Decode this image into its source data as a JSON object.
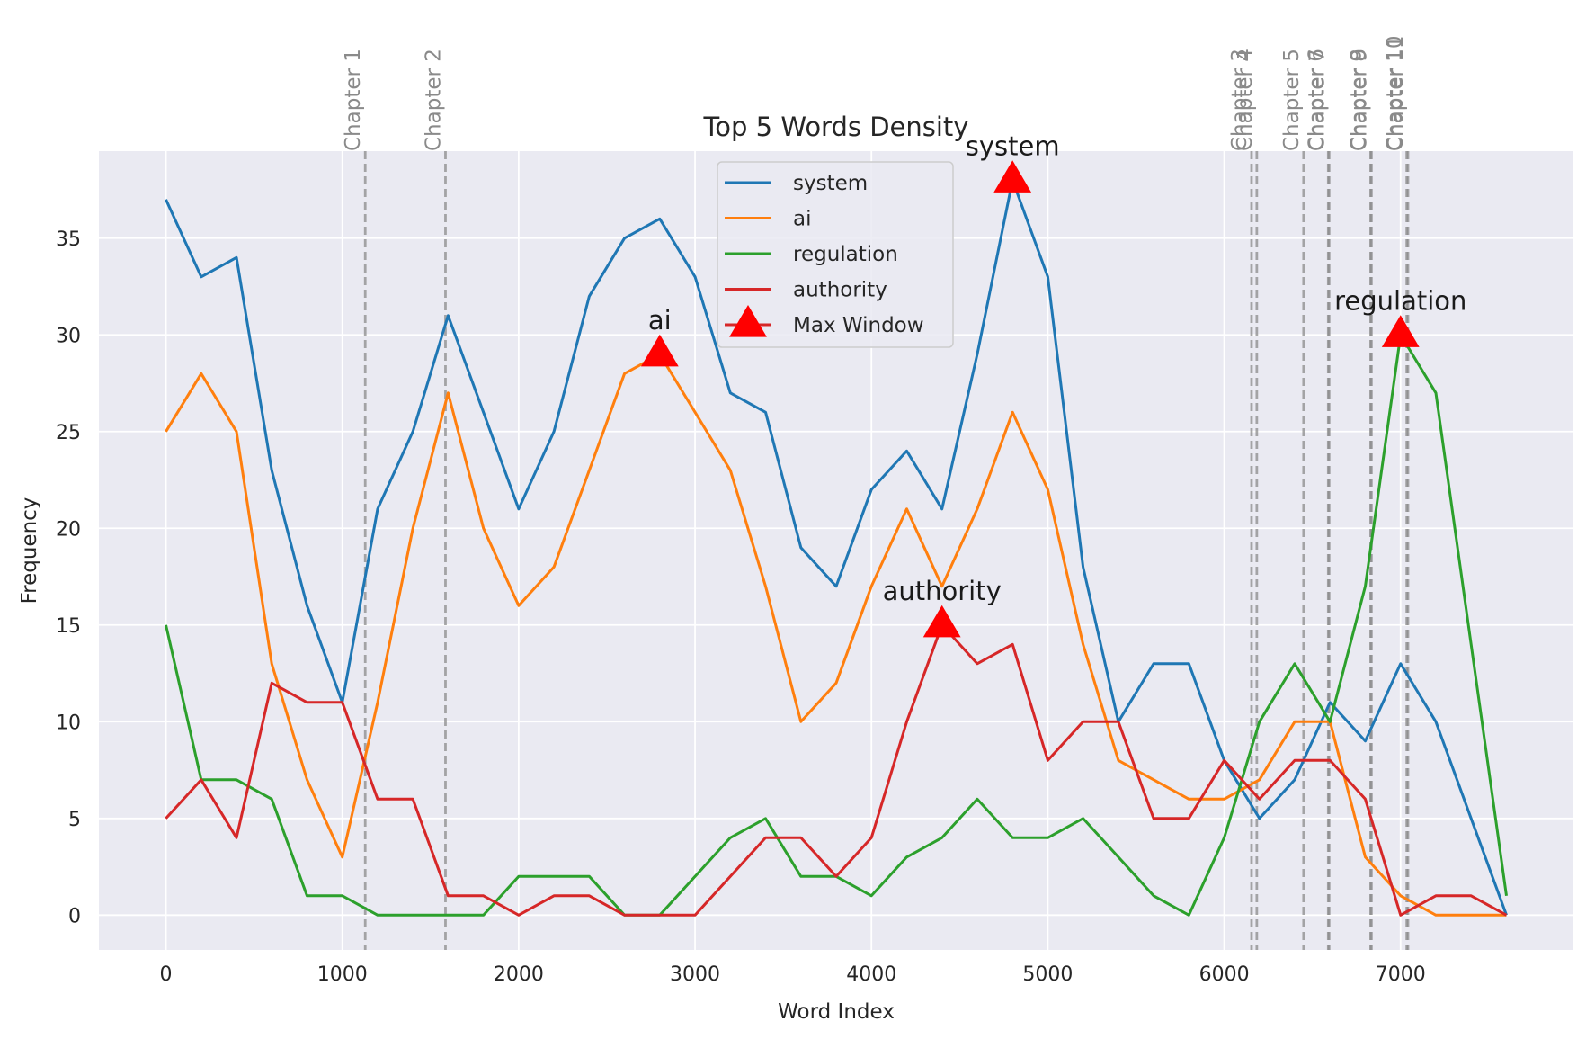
{
  "chart_data": {
    "type": "line",
    "title": "Top 5 Words Density",
    "xlabel": "Word Index",
    "ylabel": "Frequency",
    "xlim": [
      -380,
      7980
    ],
    "ylim": [
      -1.8,
      39.5
    ],
    "xticks": [
      0,
      1000,
      2000,
      3000,
      4000,
      5000,
      6000,
      7000
    ],
    "yticks": [
      0,
      5,
      10,
      15,
      20,
      25,
      30,
      35
    ],
    "grid": true,
    "legend_position": "upper-center",
    "x": [
      0,
      200,
      400,
      600,
      800,
      1000,
      1200,
      1400,
      1600,
      1800,
      2000,
      2200,
      2400,
      2600,
      2800,
      3000,
      3200,
      3400,
      3600,
      3800,
      4000,
      4200,
      4400,
      4600,
      4800,
      5000,
      5200,
      5400,
      5600,
      5800,
      6000,
      6200,
      6400,
      6600,
      6800,
      7000,
      7200,
      7400,
      7600
    ],
    "series": [
      {
        "name": "system",
        "color": "#1f77b4",
        "values": [
          37,
          33,
          34,
          23,
          16,
          11,
          21,
          25,
          31,
          26,
          21,
          25,
          32,
          35,
          36,
          33,
          27,
          26,
          19,
          17,
          22,
          24,
          21,
          29,
          38,
          33,
          18,
          10,
          13,
          13,
          8,
          5,
          7,
          11,
          9,
          13,
          10,
          5,
          0
        ]
      },
      {
        "name": "ai",
        "color": "#ff7f0e",
        "values": [
          25,
          28,
          25,
          13,
          7,
          3,
          11,
          20,
          27,
          20,
          16,
          18,
          23,
          28,
          29,
          26,
          23,
          17,
          10,
          12,
          17,
          21,
          17,
          21,
          26,
          22,
          14,
          8,
          7,
          6,
          6,
          7,
          10,
          10,
          3,
          1,
          0,
          0,
          0
        ]
      },
      {
        "name": "regulation",
        "color": "#2ca02c",
        "values": [
          15,
          7,
          7,
          6,
          1,
          1,
          0,
          0,
          0,
          0,
          2,
          2,
          2,
          0,
          0,
          2,
          4,
          5,
          2,
          2,
          1,
          3,
          4,
          6,
          4,
          4,
          5,
          3,
          1,
          0,
          4,
          10,
          13,
          10,
          17,
          30,
          27,
          14,
          1
        ]
      },
      {
        "name": "authority",
        "color": "#d62728",
        "values": [
          5,
          7,
          4,
          12,
          11,
          11,
          6,
          6,
          1,
          1,
          0,
          1,
          1,
          0,
          0,
          0,
          2,
          4,
          4,
          2,
          4,
          10,
          15,
          13,
          14,
          8,
          10,
          10,
          5,
          5,
          8,
          6,
          8,
          8,
          6,
          0,
          1,
          1,
          0
        ]
      }
    ],
    "max_window": {
      "legend_name": "Max Window",
      "color": "#ff0000",
      "points": [
        {
          "word": "system",
          "x": 4800,
          "y": 38
        },
        {
          "word": "ai",
          "x": 2800,
          "y": 29
        },
        {
          "word": "regulation",
          "x": 7000,
          "y": 30
        },
        {
          "word": "authority",
          "x": 4400,
          "y": 15
        }
      ]
    },
    "chapters": [
      {
        "label": "Chapter 1",
        "x": 1130
      },
      {
        "label": "Chapter 2",
        "x": 1585
      },
      {
        "label": "Chapter 3",
        "x": 6155
      },
      {
        "label": "Chapter 4",
        "x": 6185
      },
      {
        "label": "Chapter 5",
        "x": 6450
      },
      {
        "label": "Chapter 6",
        "x": 6590
      },
      {
        "label": "Chapter 7",
        "x": 6595
      },
      {
        "label": "Chapter 8",
        "x": 6830
      },
      {
        "label": "Chapter 9",
        "x": 6835
      },
      {
        "label": "Chapter 10",
        "x": 7035
      },
      {
        "label": "Chapter 11",
        "x": 7042
      }
    ]
  }
}
